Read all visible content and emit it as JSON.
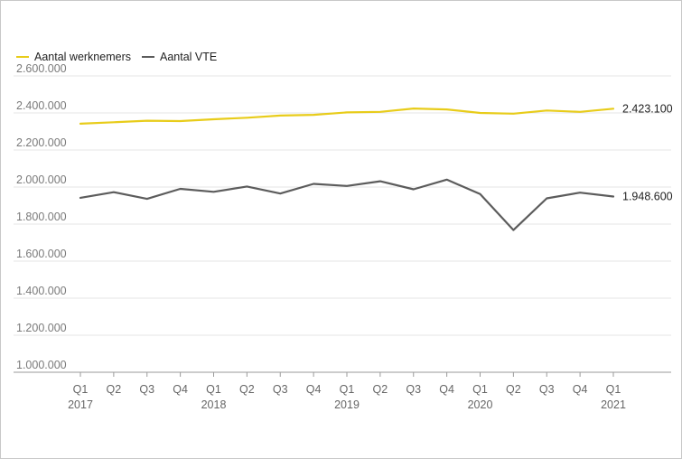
{
  "chart_data": {
    "type": "line",
    "title": "",
    "xlabel": "",
    "ylabel": "",
    "ylim": [
      1000000,
      2600000
    ],
    "yticks": [
      1000000,
      1200000,
      1400000,
      1600000,
      1800000,
      2000000,
      2200000,
      2400000,
      2600000
    ],
    "ytick_labels": [
      "1.000.000",
      "1.200.000",
      "1.400.000",
      "1.600.000",
      "1.800.000",
      "2.000.000",
      "2.200.000",
      "2.400.000",
      "2.600.000"
    ],
    "categories": [
      "Q1 2017",
      "Q2 2017",
      "Q3 2017",
      "Q4 2017",
      "Q1 2018",
      "Q2 2018",
      "Q3 2018",
      "Q4 2018",
      "Q1 2019",
      "Q2 2019",
      "Q3 2019",
      "Q4 2019",
      "Q1 2020",
      "Q2 2020",
      "Q3 2020",
      "Q4 2020",
      "Q1 2021"
    ],
    "x_tick_quarters": [
      "Q1",
      "Q2",
      "Q3",
      "Q4",
      "Q1",
      "Q2",
      "Q3",
      "Q4",
      "Q1",
      "Q2",
      "Q3",
      "Q4",
      "Q1",
      "Q2",
      "Q3",
      "Q4",
      "Q1"
    ],
    "x_tick_years": [
      "2017",
      "",
      "",
      "",
      "2018",
      "",
      "",
      "",
      "2019",
      "",
      "",
      "",
      "2020",
      "",
      "",
      "",
      "2021"
    ],
    "series": [
      {
        "name": "Aantal werknemers",
        "color": "#e8cc1a",
        "values": [
          2342000,
          2350000,
          2358000,
          2356000,
          2366000,
          2374000,
          2386000,
          2390000,
          2403000,
          2406000,
          2424000,
          2419000,
          2400000,
          2396000,
          2413000,
          2406000,
          2423100
        ],
        "end_label": "2.423.100"
      },
      {
        "name": "Aantal VTE",
        "color": "#5c5c5c",
        "values": [
          1942000,
          1972000,
          1936000,
          1990000,
          1974000,
          2003000,
          1965000,
          2017000,
          2006000,
          2031000,
          1988000,
          2040000,
          1962000,
          1768000,
          1939000,
          1970000,
          1948600
        ],
        "end_label": "1.948.600"
      }
    ],
    "grid": true,
    "legend_position": "top-left"
  }
}
